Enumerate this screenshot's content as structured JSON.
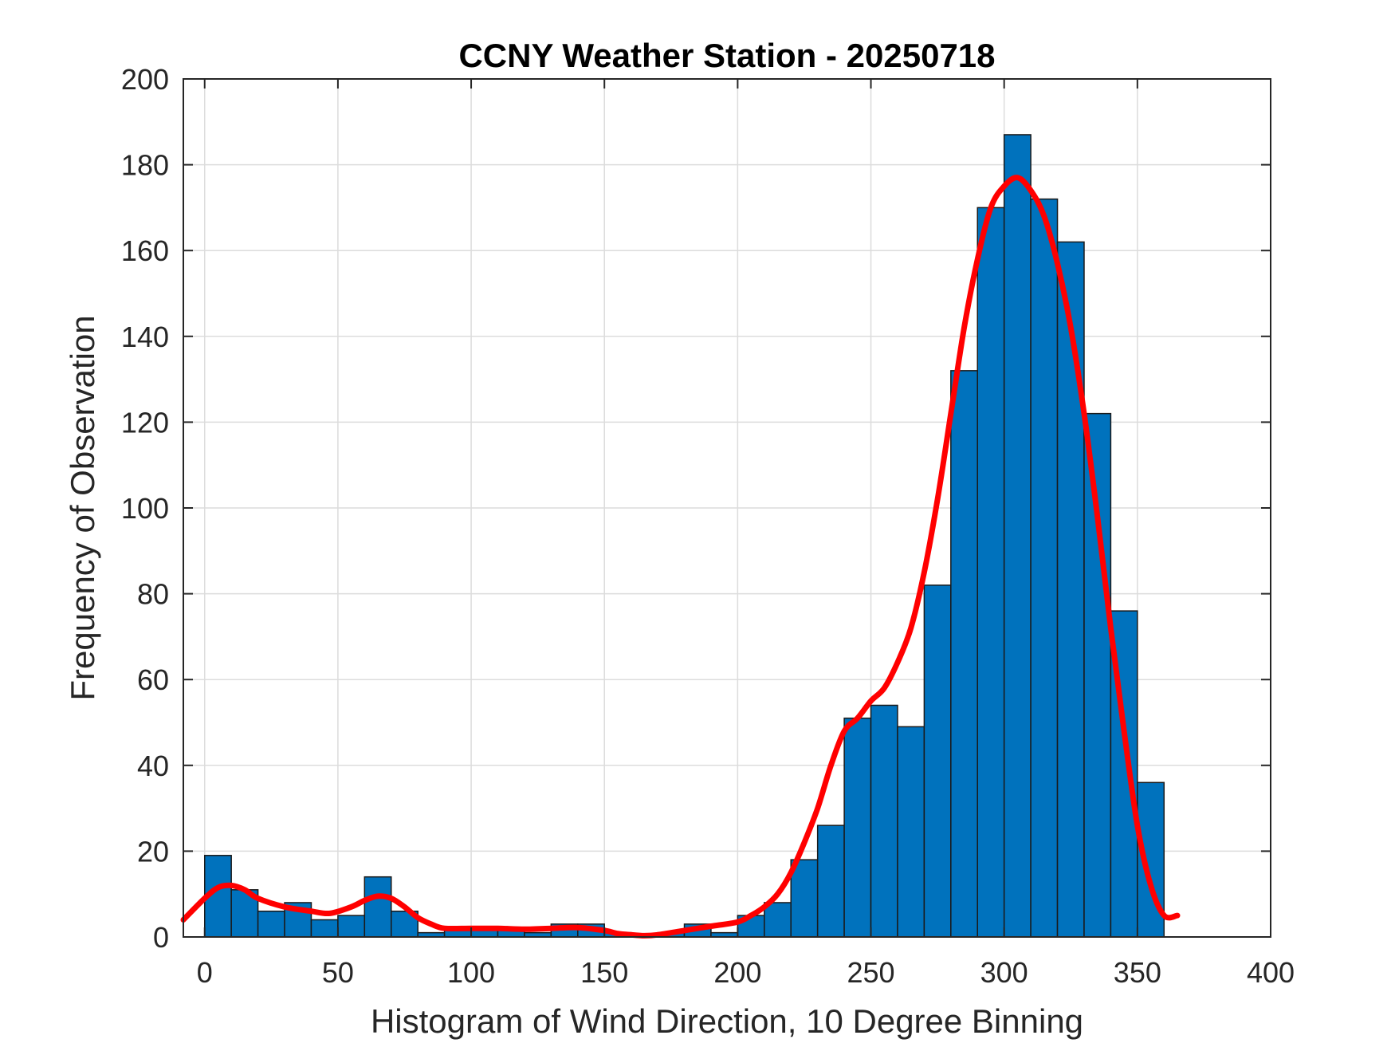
{
  "chart_data": {
    "type": "bar",
    "title": "CCNY Weather Station - 20250718",
    "xlabel": "Histogram of Wind Direction, 10 Degree Binning",
    "ylabel": "Frequency of Observation",
    "xlim": [
      -8,
      400
    ],
    "ylim": [
      0,
      200
    ],
    "xticks": [
      "0",
      "50",
      "100",
      "150",
      "200",
      "250",
      "300",
      "350",
      "400"
    ],
    "yticks": [
      "0",
      "20",
      "40",
      "60",
      "80",
      "100",
      "120",
      "140",
      "160",
      "180",
      "200"
    ],
    "grid": true,
    "bin_width": 10,
    "bins": [
      {
        "x0": 0,
        "value": 19
      },
      {
        "x0": 10,
        "value": 11
      },
      {
        "x0": 20,
        "value": 6
      },
      {
        "x0": 30,
        "value": 8
      },
      {
        "x0": 40,
        "value": 4
      },
      {
        "x0": 50,
        "value": 5
      },
      {
        "x0": 60,
        "value": 14
      },
      {
        "x0": 70,
        "value": 6
      },
      {
        "x0": 80,
        "value": 1
      },
      {
        "x0": 90,
        "value": 2
      },
      {
        "x0": 100,
        "value": 2
      },
      {
        "x0": 110,
        "value": 2
      },
      {
        "x0": 120,
        "value": 1
      },
      {
        "x0": 130,
        "value": 3
      },
      {
        "x0": 140,
        "value": 3
      },
      {
        "x0": 150,
        "value": 1
      },
      {
        "x0": 160,
        "value": 0
      },
      {
        "x0": 170,
        "value": 1
      },
      {
        "x0": 180,
        "value": 3
      },
      {
        "x0": 190,
        "value": 1
      },
      {
        "x0": 200,
        "value": 5
      },
      {
        "x0": 210,
        "value": 8
      },
      {
        "x0": 220,
        "value": 18
      },
      {
        "x0": 230,
        "value": 26
      },
      {
        "x0": 240,
        "value": 51
      },
      {
        "x0": 250,
        "value": 54
      },
      {
        "x0": 260,
        "value": 49
      },
      {
        "x0": 270,
        "value": 82
      },
      {
        "x0": 280,
        "value": 132
      },
      {
        "x0": 290,
        "value": 170
      },
      {
        "x0": 300,
        "value": 187
      },
      {
        "x0": 310,
        "value": 172
      },
      {
        "x0": 320,
        "value": 162
      },
      {
        "x0": 330,
        "value": 122
      },
      {
        "x0": 340,
        "value": 76
      },
      {
        "x0": 350,
        "value": 36
      }
    ],
    "curve": {
      "x": [
        -8,
        0,
        5,
        10,
        15,
        20,
        30,
        40,
        47,
        55,
        60,
        65,
        70,
        75,
        80,
        85,
        90,
        100,
        110,
        120,
        130,
        140,
        150,
        155,
        160,
        165,
        170,
        180,
        190,
        200,
        205,
        210,
        215,
        220,
        225,
        230,
        235,
        240,
        245,
        250,
        255,
        260,
        265,
        270,
        275,
        280,
        285,
        290,
        295,
        300,
        305,
        310,
        315,
        320,
        325,
        330,
        335,
        340,
        345,
        350,
        355,
        360,
        365
      ],
      "y": [
        4,
        9,
        11.5,
        12,
        11,
        9,
        7,
        6,
        5.5,
        7,
        8.5,
        9.5,
        9,
        7,
        4.5,
        3,
        2,
        2,
        2,
        1.8,
        2,
        2.2,
        1.5,
        0.8,
        0.5,
        0.3,
        0.5,
        1.5,
        2.5,
        3.5,
        5,
        7,
        10,
        15,
        22,
        30,
        40,
        48,
        51,
        55,
        58,
        64,
        72,
        85,
        102,
        122,
        142,
        158,
        170,
        175,
        177,
        174,
        168,
        157,
        142,
        122,
        98,
        72,
        48,
        26,
        12,
        5,
        5
      ]
    },
    "colors": {
      "bar_fill": "#0072bd",
      "bar_edge": "#1a1a1a",
      "curve": "#ff0000",
      "grid": "#dcdcdc",
      "axis": "#262626"
    }
  }
}
